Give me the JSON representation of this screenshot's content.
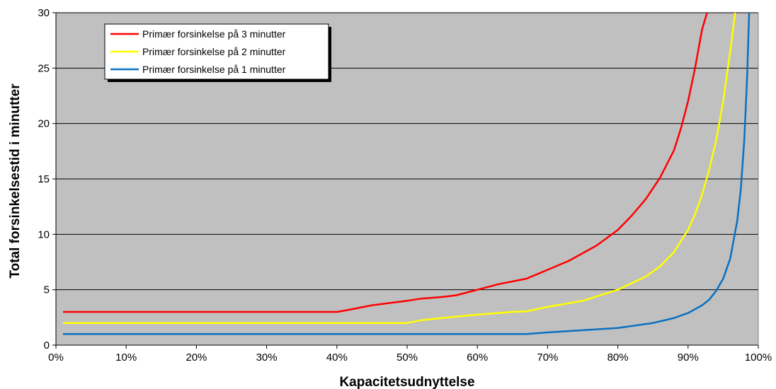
{
  "chart_data": {
    "type": "line",
    "title": "",
    "xlabel": "Kapacitetsudnyttelse",
    "ylabel": "Total forsinkelsestid i minutter",
    "xlim": [
      0,
      100
    ],
    "ylim": [
      0,
      30
    ],
    "x_ticks": [
      "0%",
      "10%",
      "20%",
      "30%",
      "40%",
      "50%",
      "60%",
      "70%",
      "80%",
      "90%",
      "100%"
    ],
    "y_ticks": [
      "0",
      "5",
      "10",
      "15",
      "20",
      "25",
      "30"
    ],
    "x_tick_values": [
      0,
      10,
      20,
      30,
      40,
      50,
      60,
      70,
      80,
      90,
      100
    ],
    "y_tick_values": [
      0,
      5,
      10,
      15,
      20,
      25,
      30
    ],
    "grid": "horizontal",
    "legend_position": "top-left",
    "plot_background": "#c0c0c0",
    "series": [
      {
        "name": "Primær forsinkelse på 3 minutter",
        "color": "#ff0000",
        "points": [
          [
            1,
            3
          ],
          [
            10,
            3
          ],
          [
            20,
            3
          ],
          [
            30,
            3
          ],
          [
            40,
            3
          ],
          [
            41,
            3.1
          ],
          [
            43,
            3.35
          ],
          [
            45,
            3.6
          ],
          [
            50,
            4
          ],
          [
            52,
            4.2
          ],
          [
            55,
            4.35
          ],
          [
            57,
            4.5
          ],
          [
            60,
            5
          ],
          [
            63,
            5.5
          ],
          [
            67,
            6
          ],
          [
            70,
            6.8
          ],
          [
            73,
            7.6
          ],
          [
            75,
            8.3
          ],
          [
            77,
            9
          ],
          [
            80,
            10.4
          ],
          [
            82,
            11.7
          ],
          [
            84,
            13.2
          ],
          [
            86,
            15.1
          ],
          [
            88,
            17.6
          ],
          [
            89,
            19.6
          ],
          [
            90,
            22
          ],
          [
            91,
            25
          ],
          [
            92,
            28.5
          ],
          [
            92.7,
            30
          ]
        ]
      },
      {
        "name": "Primær forsinkelse på 2 minutter",
        "color": "#ffff00",
        "points": [
          [
            1,
            2
          ],
          [
            10,
            2
          ],
          [
            20,
            2
          ],
          [
            30,
            2
          ],
          [
            40,
            2
          ],
          [
            50,
            2
          ],
          [
            52,
            2.25
          ],
          [
            55,
            2.45
          ],
          [
            60,
            2.75
          ],
          [
            65,
            3
          ],
          [
            67,
            3.05
          ],
          [
            70,
            3.45
          ],
          [
            75,
            4
          ],
          [
            80,
            5
          ],
          [
            84,
            6.2
          ],
          [
            86,
            7.1
          ],
          [
            88,
            8.4
          ],
          [
            90,
            10.4
          ],
          [
            91,
            11.8
          ],
          [
            92,
            13.6
          ],
          [
            93,
            15.8
          ],
          [
            94,
            18.5
          ],
          [
            95,
            22
          ],
          [
            96,
            26.5
          ],
          [
            96.7,
            30
          ]
        ]
      },
      {
        "name": "Primær forsinkelse på 1 minutter",
        "color": "#0a70c0",
        "points": [
          [
            1,
            1
          ],
          [
            10,
            1
          ],
          [
            20,
            1
          ],
          [
            30,
            1
          ],
          [
            40,
            1
          ],
          [
            50,
            1
          ],
          [
            60,
            1
          ],
          [
            67,
            1
          ],
          [
            70,
            1.15
          ],
          [
            75,
            1.35
          ],
          [
            80,
            1.55
          ],
          [
            85,
            2
          ],
          [
            88,
            2.45
          ],
          [
            90,
            2.9
          ],
          [
            92,
            3.6
          ],
          [
            93,
            4.1
          ],
          [
            94,
            4.9
          ],
          [
            95,
            6
          ],
          [
            96,
            7.8
          ],
          [
            97,
            11.2
          ],
          [
            97.5,
            14
          ],
          [
            98,
            18.5
          ],
          [
            98.4,
            24
          ],
          [
            98.7,
            30
          ]
        ]
      }
    ]
  }
}
